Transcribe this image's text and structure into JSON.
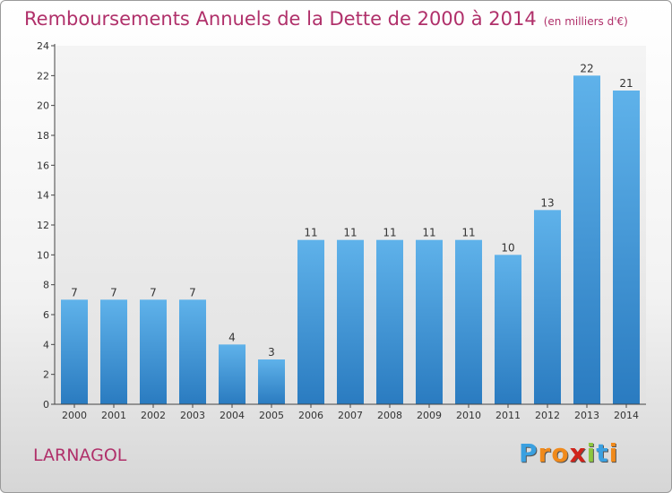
{
  "title": "Remboursements Annuels de la Dette de 2000 à 2014",
  "subtitle": "(en milliers d'€)",
  "commune": "LARNAGOL",
  "logo": {
    "letters": [
      "P",
      "r",
      "o",
      "x",
      "i",
      "t",
      "i"
    ],
    "colors": [
      "#3aa0e0",
      "#f08a1c",
      "#f08a1c",
      "#d0241b",
      "#8cc63f",
      "#3aa0e0",
      "#f08a1c"
    ]
  },
  "chart_data": {
    "type": "bar",
    "categories": [
      "2000",
      "2001",
      "2002",
      "2003",
      "2004",
      "2005",
      "2006",
      "2007",
      "2008",
      "2009",
      "2010",
      "2011",
      "2012",
      "2013",
      "2014"
    ],
    "values": [
      7,
      7,
      7,
      7,
      4,
      3,
      11,
      11,
      11,
      11,
      11,
      10,
      13,
      22,
      21
    ],
    "yticks": [
      0,
      2,
      4,
      6,
      8,
      10,
      12,
      14,
      16,
      18,
      20,
      22,
      24
    ],
    "ylim": [
      0,
      24
    ],
    "grid": false,
    "bar_color": "#4ea3de"
  }
}
